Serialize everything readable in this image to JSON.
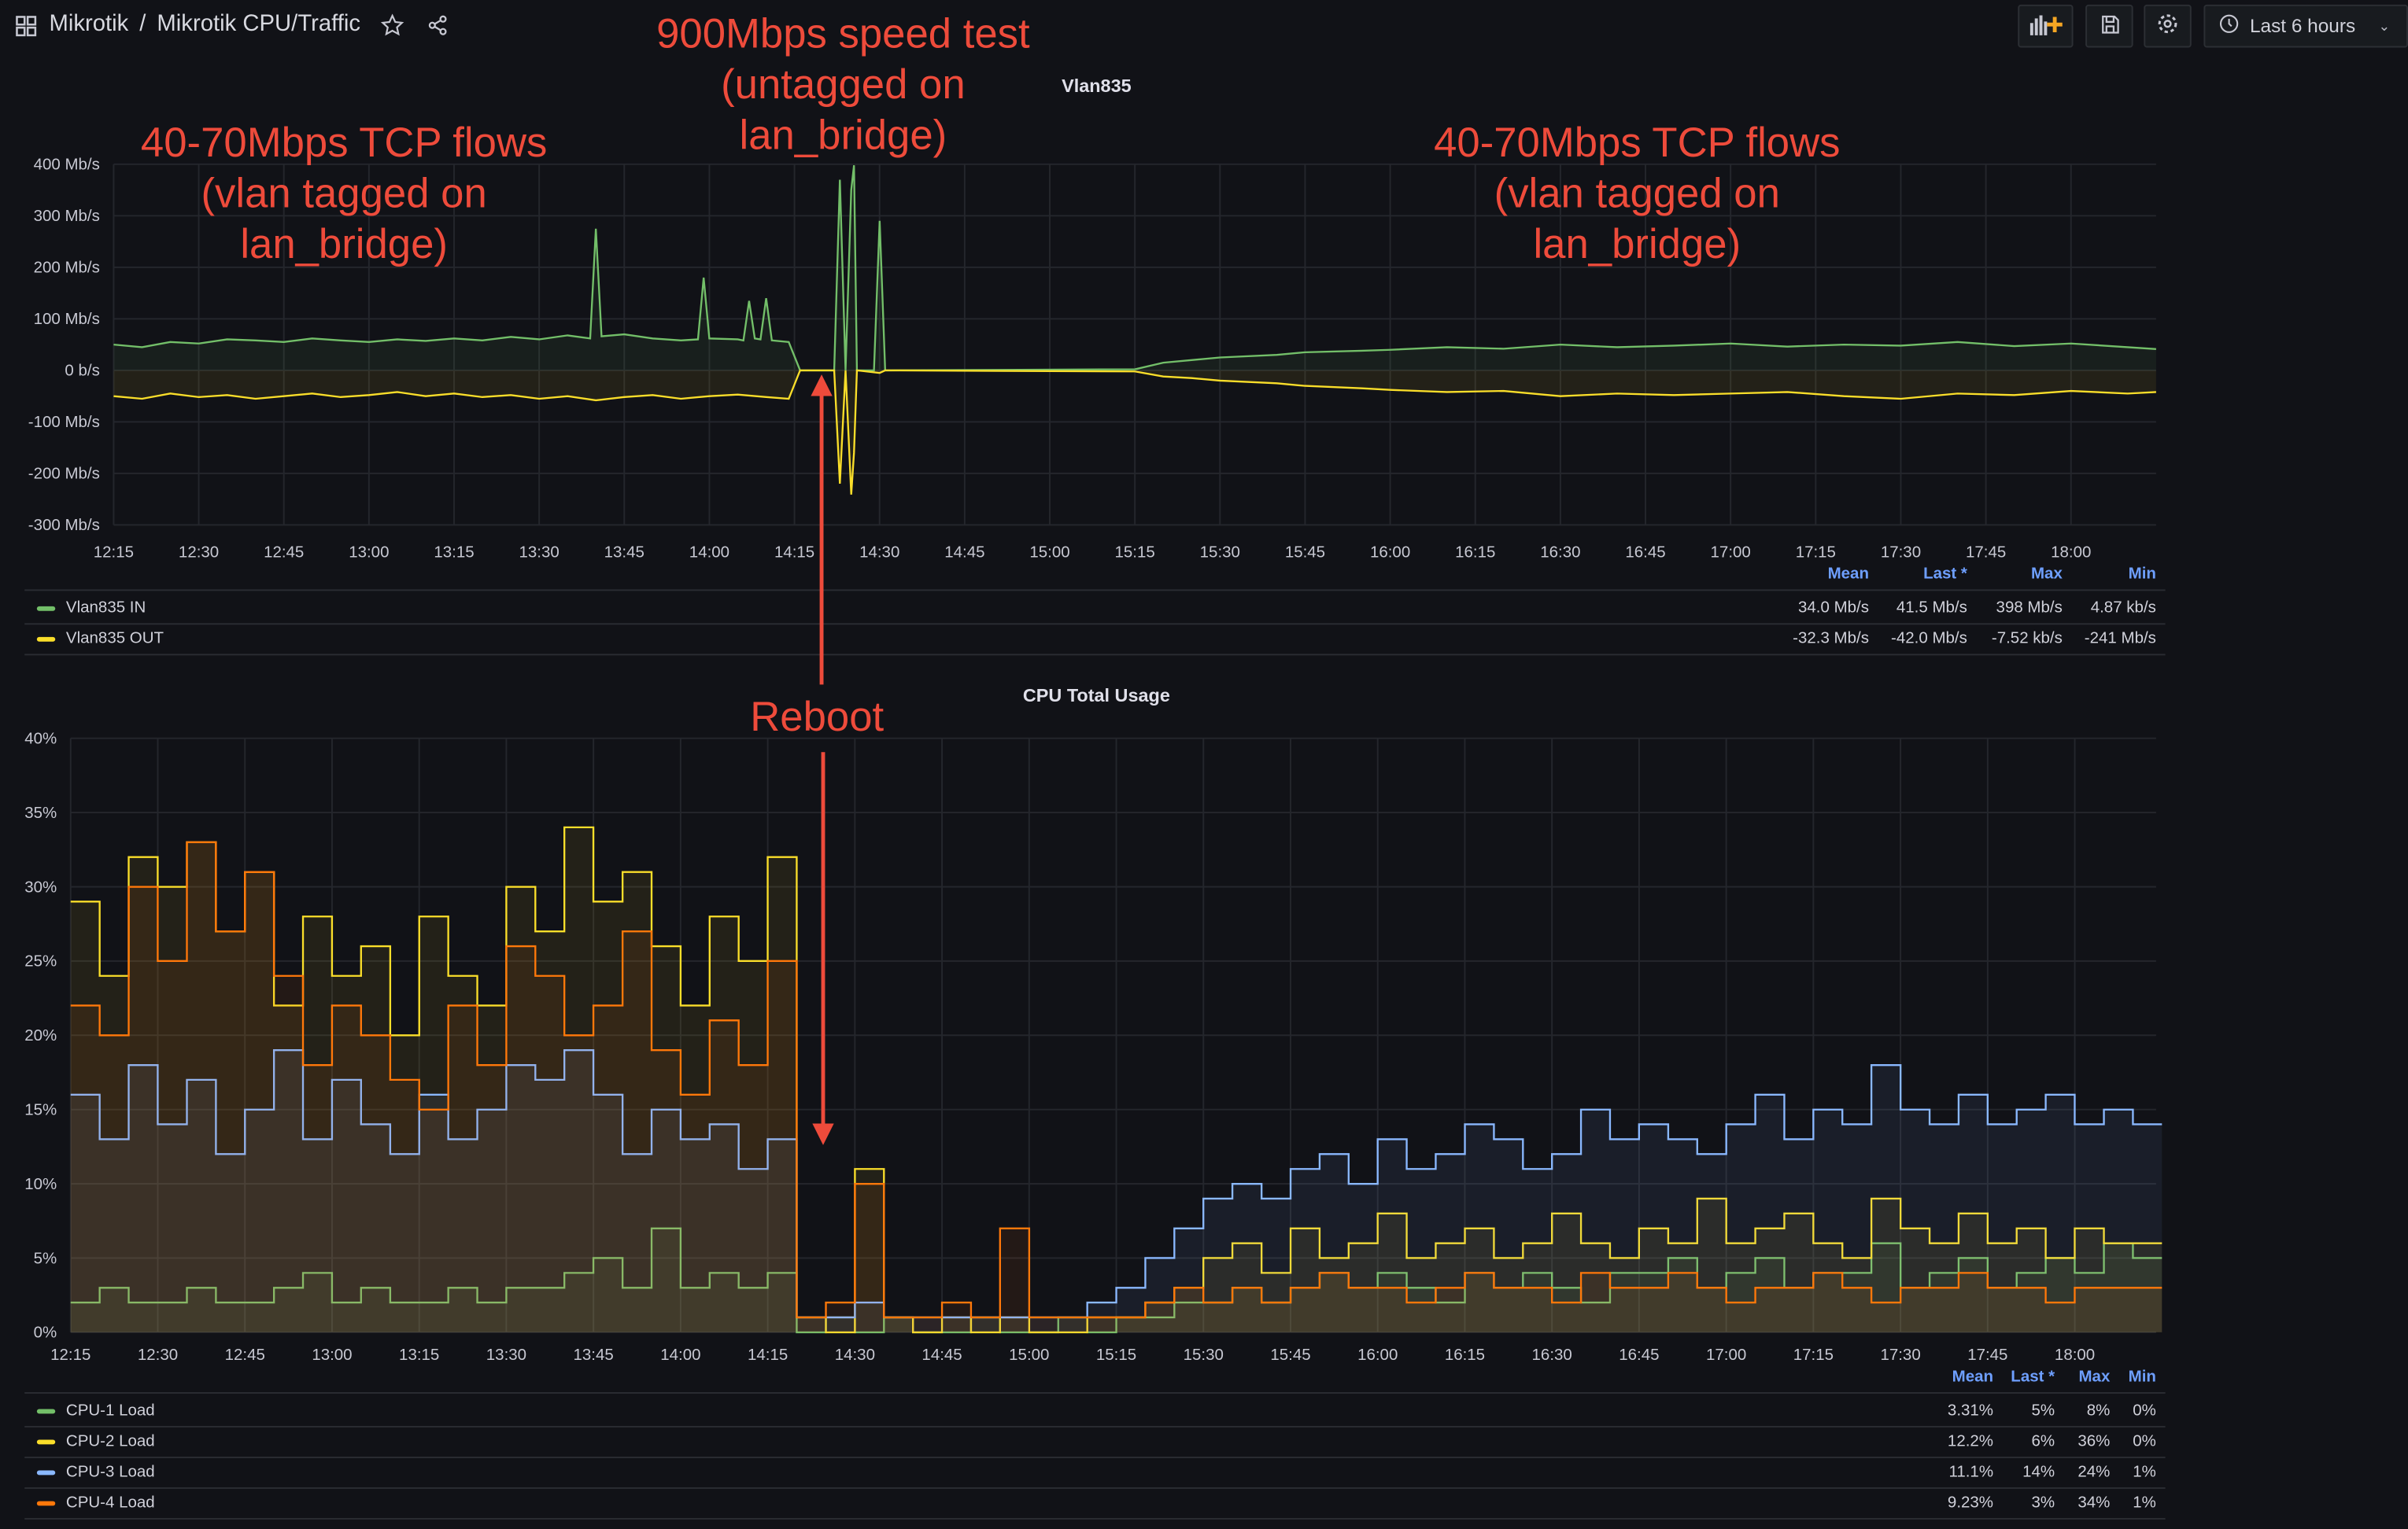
{
  "header": {
    "breadcrumb_root": "Mikrotik",
    "breadcrumb_sep": "/",
    "dashboard_title": "Mikrotik CPU/Traffic",
    "time_range": "Last 6 hours",
    "icons": [
      "grid-icon",
      "star-icon",
      "share-icon",
      "add-panel-icon",
      "save-icon",
      "settings-icon",
      "clock-icon",
      "chevron-down-icon"
    ]
  },
  "annotations": {
    "speed_test": [
      "900Mbps speed test",
      "(untagged on",
      "lan_bridge)"
    ],
    "left_flows": [
      "40-70Mbps TCP flows",
      "(vlan tagged on",
      "lan_bridge)"
    ],
    "right_flows": [
      "40-70Mbps TCP flows",
      "(vlan tagged on",
      "lan_bridge)"
    ],
    "reboot": "Reboot",
    "color": "#ee4b3b"
  },
  "chart_data": [
    {
      "type": "line",
      "title": "Vlan835",
      "xlabel": "",
      "ylabel": "",
      "x_ticks": [
        "12:15",
        "12:30",
        "12:45",
        "13:00",
        "13:15",
        "13:30",
        "13:45",
        "14:00",
        "14:15",
        "14:30",
        "14:45",
        "15:00",
        "15:15",
        "15:30",
        "15:45",
        "16:00",
        "16:15",
        "16:30",
        "16:45",
        "17:00",
        "17:15",
        "17:30",
        "17:45",
        "18:00"
      ],
      "y_ticks": [
        "400 Mb/s",
        "300 Mb/s",
        "200 Mb/s",
        "100 Mb/s",
        "0 b/s",
        "-100 Mb/s",
        "-200 Mb/s",
        "-300 Mb/s"
      ],
      "ylim": [
        -300,
        400
      ],
      "unit": "Mb/s",
      "grid": true,
      "legend_placement": "bottom",
      "legend_columns": [
        "Mean",
        "Last *",
        "Max",
        "Min"
      ],
      "series": [
        {
          "name": "Vlan835 IN",
          "color": "#73bf69",
          "points": [
            [
              "12:15",
              50
            ],
            [
              "12:20",
              45
            ],
            [
              "12:25",
              55
            ],
            [
              "12:30",
              52
            ],
            [
              "12:35",
              60
            ],
            [
              "12:40",
              58
            ],
            [
              "12:45",
              55
            ],
            [
              "12:50",
              62
            ],
            [
              "12:55",
              58
            ],
            [
              "13:00",
              55
            ],
            [
              "13:05",
              60
            ],
            [
              "13:10",
              57
            ],
            [
              "13:15",
              62
            ],
            [
              "13:20",
              58
            ],
            [
              "13:25",
              65
            ],
            [
              "13:30",
              60
            ],
            [
              "13:35",
              68
            ],
            [
              "13:39",
              62
            ],
            [
              "13:40",
              275
            ],
            [
              "13:41",
              66
            ],
            [
              "13:45",
              70
            ],
            [
              "13:50",
              62
            ],
            [
              "13:55",
              58
            ],
            [
              "13:58",
              60
            ],
            [
              "13:59",
              180
            ],
            [
              "14:00",
              62
            ],
            [
              "14:05",
              60
            ],
            [
              "14:06",
              58
            ],
            [
              "14:07",
              135
            ],
            [
              "14:08",
              62
            ],
            [
              "14:09",
              60
            ],
            [
              "14:10",
              140
            ],
            [
              "14:11",
              58
            ],
            [
              "14:14",
              55
            ],
            [
              "14:16",
              0
            ],
            [
              "14:22",
              0
            ],
            [
              "14:23",
              370
            ],
            [
              "14:24",
              0
            ],
            [
              "14:25",
              350
            ],
            [
              "14:25.5",
              398
            ],
            [
              "14:26",
              0
            ],
            [
              "14:29",
              0
            ],
            [
              "14:30",
              290
            ],
            [
              "14:31",
              0
            ],
            [
              "15:15",
              2
            ],
            [
              "15:20",
              15
            ],
            [
              "15:25",
              20
            ],
            [
              "15:30",
              25
            ],
            [
              "15:40",
              30
            ],
            [
              "15:45",
              35
            ],
            [
              "15:55",
              38
            ],
            [
              "16:00",
              40
            ],
            [
              "16:10",
              45
            ],
            [
              "16:20",
              42
            ],
            [
              "16:30",
              50
            ],
            [
              "16:40",
              45
            ],
            [
              "16:50",
              48
            ],
            [
              "17:00",
              52
            ],
            [
              "17:10",
              46
            ],
            [
              "17:20",
              50
            ],
            [
              "17:30",
              48
            ],
            [
              "17:40",
              55
            ],
            [
              "17:50",
              47
            ],
            [
              "18:00",
              52
            ],
            [
              "18:10",
              45
            ],
            [
              "18:15",
              41.5
            ]
          ]
        },
        {
          "name": "Vlan835 OUT",
          "color": "#fade2a",
          "points": [
            [
              "12:15",
              -50
            ],
            [
              "12:20",
              -55
            ],
            [
              "12:25",
              -45
            ],
            [
              "12:30",
              -52
            ],
            [
              "12:35",
              -48
            ],
            [
              "12:40",
              -55
            ],
            [
              "12:45",
              -50
            ],
            [
              "12:50",
              -45
            ],
            [
              "12:55",
              -52
            ],
            [
              "13:00",
              -48
            ],
            [
              "13:05",
              -42
            ],
            [
              "13:10",
              -50
            ],
            [
              "13:15",
              -45
            ],
            [
              "13:20",
              -52
            ],
            [
              "13:25",
              -48
            ],
            [
              "13:30",
              -55
            ],
            [
              "13:35",
              -50
            ],
            [
              "13:40",
              -58
            ],
            [
              "13:45",
              -52
            ],
            [
              "13:50",
              -48
            ],
            [
              "13:55",
              -55
            ],
            [
              "14:00",
              -50
            ],
            [
              "14:05",
              -47
            ],
            [
              "14:10",
              -52
            ],
            [
              "14:14",
              -55
            ],
            [
              "14:16",
              0
            ],
            [
              "14:22",
              0
            ],
            [
              "14:23",
              -220
            ],
            [
              "14:24",
              0
            ],
            [
              "14:25",
              -241
            ],
            [
              "14:25.5",
              -160
            ],
            [
              "14:26",
              0
            ],
            [
              "14:30",
              -5
            ],
            [
              "14:31",
              0
            ],
            [
              "15:15",
              -2
            ],
            [
              "15:20",
              -12
            ],
            [
              "15:25",
              -15
            ],
            [
              "15:30",
              -20
            ],
            [
              "15:40",
              -25
            ],
            [
              "15:45",
              -30
            ],
            [
              "15:55",
              -35
            ],
            [
              "16:00",
              -38
            ],
            [
              "16:10",
              -42
            ],
            [
              "16:20",
              -40
            ],
            [
              "16:30",
              -50
            ],
            [
              "16:40",
              -45
            ],
            [
              "16:50",
              -48
            ],
            [
              "17:00",
              -45
            ],
            [
              "17:10",
              -42
            ],
            [
              "17:20",
              -50
            ],
            [
              "17:30",
              -55
            ],
            [
              "17:40",
              -45
            ],
            [
              "17:50",
              -48
            ],
            [
              "18:00",
              -40
            ],
            [
              "18:10",
              -45
            ],
            [
              "18:15",
              -42
            ]
          ]
        }
      ],
      "legend_rows": [
        {
          "name": "Vlan835 IN",
          "color": "#73bf69",
          "mean": "34.0 Mb/s",
          "last": "41.5 Mb/s",
          "max": "398 Mb/s",
          "min": "4.87 kb/s"
        },
        {
          "name": "Vlan835 OUT",
          "color": "#fade2a",
          "mean": "-32.3 Mb/s",
          "last": "-42.0 Mb/s",
          "max": "-7.52 kb/s",
          "min": "-241 Mb/s"
        }
      ]
    },
    {
      "type": "line",
      "title": "CPU Total Usage",
      "xlabel": "",
      "ylabel": "",
      "x_ticks": [
        "12:15",
        "12:30",
        "12:45",
        "13:00",
        "13:15",
        "13:30",
        "13:45",
        "14:00",
        "14:15",
        "14:30",
        "14:45",
        "15:00",
        "15:15",
        "15:30",
        "15:45",
        "16:00",
        "16:15",
        "16:30",
        "16:45",
        "17:00",
        "17:15",
        "17:30",
        "17:45",
        "18:00"
      ],
      "y_ticks": [
        "40%",
        "35%",
        "30%",
        "25%",
        "20%",
        "15%",
        "10%",
        "5%",
        "0%"
      ],
      "ylim": [
        0,
        40
      ],
      "unit": "%",
      "grid": true,
      "legend_placement": "bottom",
      "x_start": "12:15",
      "x_step_minutes": 5,
      "legend_columns": [
        "Mean",
        "Last *",
        "Max",
        "Min"
      ],
      "series": [
        {
          "name": "CPU-1 Load",
          "color": "#73bf69",
          "values": [
            2,
            3,
            2,
            2,
            3,
            2,
            2,
            3,
            4,
            2,
            3,
            2,
            2,
            3,
            2,
            3,
            3,
            4,
            5,
            3,
            7,
            3,
            4,
            3,
            4,
            0,
            1,
            0,
            1,
            0,
            0,
            1,
            0,
            0,
            1,
            0,
            1,
            1,
            2,
            2,
            3,
            2,
            3,
            4,
            3,
            4,
            3,
            2,
            4,
            3,
            4,
            3,
            2,
            4,
            4,
            5,
            3,
            4,
            5,
            3,
            4,
            4,
            6,
            3,
            4,
            5,
            3,
            4,
            5,
            4,
            6,
            5,
            5
          ]
        },
        {
          "name": "CPU-2 Load",
          "color": "#fade2a",
          "values": [
            29,
            24,
            32,
            30,
            33,
            27,
            31,
            22,
            28,
            24,
            26,
            20,
            28,
            24,
            22,
            30,
            27,
            34,
            29,
            31,
            26,
            22,
            28,
            25,
            32,
            1,
            0,
            11,
            1,
            0,
            1,
            0,
            1,
            0,
            0,
            1,
            1,
            2,
            3,
            5,
            6,
            4,
            7,
            5,
            6,
            8,
            5,
            6,
            7,
            5,
            6,
            8,
            6,
            5,
            7,
            6,
            9,
            6,
            7,
            8,
            6,
            5,
            9,
            7,
            6,
            8,
            6,
            7,
            5,
            7,
            6,
            6,
            6
          ]
        },
        {
          "name": "CPU-3 Load",
          "color": "#8ab8ff",
          "values": [
            16,
            13,
            18,
            14,
            17,
            12,
            15,
            19,
            13,
            17,
            14,
            12,
            16,
            13,
            15,
            18,
            17,
            19,
            16,
            12,
            15,
            13,
            14,
            11,
            13,
            1,
            1,
            2,
            1,
            1,
            1,
            1,
            1,
            1,
            1,
            2,
            3,
            5,
            7,
            9,
            10,
            9,
            11,
            12,
            10,
            13,
            11,
            12,
            14,
            13,
            11,
            12,
            15,
            13,
            14,
            13,
            12,
            14,
            16,
            13,
            15,
            14,
            18,
            15,
            14,
            16,
            14,
            15,
            16,
            14,
            15,
            14,
            14
          ]
        },
        {
          "name": "CPU-4 Load",
          "color": "#ff780a",
          "values": [
            22,
            20,
            30,
            25,
            33,
            27,
            31,
            24,
            18,
            22,
            20,
            17,
            15,
            22,
            18,
            26,
            24,
            20,
            22,
            27,
            19,
            16,
            21,
            18,
            25,
            1,
            2,
            10,
            1,
            1,
            2,
            1,
            7,
            1,
            1,
            1,
            1,
            2,
            3,
            2,
            3,
            2,
            3,
            4,
            3,
            3,
            2,
            3,
            4,
            3,
            3,
            2,
            4,
            3,
            3,
            4,
            3,
            2,
            3,
            3,
            4,
            3,
            2,
            3,
            3,
            4,
            3,
            3,
            2,
            3,
            3,
            3,
            3
          ]
        }
      ],
      "legend_rows": [
        {
          "name": "CPU-1 Load",
          "color": "#73bf69",
          "mean": "3.31%",
          "last": "5%",
          "max": "8%",
          "min": "0%"
        },
        {
          "name": "CPU-2 Load",
          "color": "#fade2a",
          "mean": "12.2%",
          "last": "6%",
          "max": "36%",
          "min": "0%"
        },
        {
          "name": "CPU-3 Load",
          "color": "#8ab8ff",
          "mean": "11.1%",
          "last": "14%",
          "max": "24%",
          "min": "1%"
        },
        {
          "name": "CPU-4 Load",
          "color": "#ff780a",
          "mean": "9.23%",
          "last": "3%",
          "max": "34%",
          "min": "1%"
        }
      ]
    }
  ]
}
